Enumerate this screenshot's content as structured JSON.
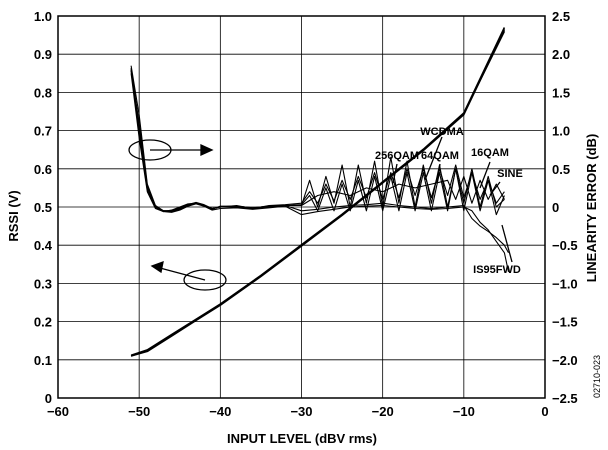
{
  "figure_id": "02710-023",
  "chart_data": {
    "type": "line",
    "xlabel": "INPUT LEVEL (dBV rms)",
    "ylabel_left": "RSSI (V)",
    "ylabel_right": "LINEARITY ERROR (dB)",
    "xlim": [
      -60,
      0
    ],
    "ylim_left": [
      0,
      1.0
    ],
    "ylim_right": [
      -2.5,
      2.5
    ],
    "grid": true,
    "x_ticks": [
      "−60",
      "−50",
      "−40",
      "−30",
      "−20",
      "−10",
      "0"
    ],
    "y_left_ticks": [
      "0",
      "0.1",
      "0.2",
      "0.3",
      "0.4",
      "0.5",
      "0.6",
      "0.7",
      "0.8",
      "0.9",
      "1.0"
    ],
    "y_right_ticks": [
      "−2.5",
      "−2.0",
      "−1.5",
      "−1.0",
      "−0.5",
      "0",
      "0.5",
      "1.0",
      "1.5",
      "2.0",
      "2.5"
    ],
    "annotations": [
      "WCDMA",
      "256QAM",
      "64QAM",
      "16QAM",
      "SINE",
      "IS95FWD"
    ],
    "series": [
      {
        "name": "SINE",
        "axis": "left",
        "x": [
          -51,
          -49,
          -46,
          -43,
          -40,
          -35,
          -30,
          -25,
          -20,
          -15,
          -10,
          -5
        ],
        "y": [
          0.11,
          0.125,
          0.165,
          0.205,
          0.245,
          0.32,
          0.4,
          0.48,
          0.565,
          0.65,
          0.745,
          0.96
        ]
      },
      {
        "name": "WCDMA",
        "axis": "left",
        "x": [
          -51,
          -49,
          -46,
          -43,
          -40,
          -35,
          -30,
          -25,
          -20,
          -15,
          -10,
          -5
        ],
        "y": [
          0.11,
          0.122,
          0.162,
          0.203,
          0.243,
          0.318,
          0.398,
          0.478,
          0.563,
          0.648,
          0.742,
          0.965
        ]
      },
      {
        "name": "IS95FWD",
        "axis": "left",
        "x": [
          -51,
          -49,
          -46,
          -43,
          -40,
          -35,
          -30,
          -25,
          -20,
          -15,
          -10,
          -5
        ],
        "y": [
          0.112,
          0.126,
          0.166,
          0.206,
          0.246,
          0.321,
          0.401,
          0.481,
          0.566,
          0.651,
          0.746,
          0.97
        ]
      },
      {
        "name": "SINE",
        "axis": "right",
        "x": [
          -51,
          -50,
          -49,
          -48,
          -47,
          -46,
          -45,
          -44,
          -43,
          -42,
          -41,
          -40,
          -38,
          -36,
          -34,
          -32,
          -30,
          -28,
          -26,
          -24,
          -22,
          -20,
          -18,
          -16,
          -14,
          -12,
          -10,
          -9,
          -8,
          -7,
          -6,
          -5,
          -4.5
        ],
        "y": [
          1.85,
          1.2,
          0.3,
          0.02,
          -0.05,
          -0.06,
          -0.03,
          0.02,
          0.05,
          0.02,
          -0.02,
          0,
          0,
          -0.02,
          0,
          0.02,
          -0.05,
          -0.03,
          0,
          0.02,
          0.03,
          0.05,
          0.02,
          0,
          -0.02,
          0,
          0.02,
          -0.15,
          -0.25,
          -0.32,
          -0.4,
          -0.5,
          -0.6
        ]
      },
      {
        "name": "WCDMA",
        "axis": "right",
        "x": [
          -51,
          -50,
          -49,
          -48,
          -47,
          -46,
          -45,
          -44,
          -43,
          -42,
          -41,
          -40,
          -38,
          -36,
          -34,
          -32,
          -30,
          -29,
          -28,
          -27,
          -26,
          -25,
          -24,
          -23,
          -22,
          -21,
          -20,
          -19,
          -18,
          -17,
          -16,
          -15,
          -14,
          -13,
          -12,
          -11,
          -10,
          -9,
          -8,
          -7,
          -6,
          -5
        ],
        "y": [
          1.8,
          1.0,
          0.25,
          0,
          -0.05,
          -0.05,
          -0.02,
          0.03,
          0.06,
          0.03,
          -0.02,
          0,
          0.02,
          -0.02,
          0.02,
          0.03,
          0.05,
          0.2,
          0.05,
          0.3,
          0.08,
          0.35,
          0.1,
          0.4,
          0.12,
          0.45,
          0.1,
          0.45,
          0.12,
          0.5,
          0.15,
          0.5,
          0.12,
          0.5,
          0.15,
          0.55,
          0.12,
          0.45,
          0.1,
          0.35,
          0.05,
          0.2
        ]
      },
      {
        "name": "256QAM",
        "axis": "right",
        "x": [
          -51,
          -50,
          -49,
          -48,
          -47,
          -46,
          -45,
          -44,
          -43,
          -42,
          -41,
          -40,
          -38,
          -36,
          -34,
          -32,
          -30,
          -29,
          -28,
          -27,
          -26,
          -25,
          -24,
          -23,
          -22,
          -21,
          -20,
          -19,
          -18,
          -17,
          -16,
          -15,
          -14,
          -13,
          -12,
          -11,
          -10,
          -9,
          -8,
          -7,
          -6,
          -5
        ],
        "y": [
          1.75,
          0.9,
          0.2,
          -0.02,
          -0.06,
          -0.04,
          0,
          0.04,
          0.05,
          0.02,
          -0.03,
          0.01,
          0.01,
          -0.01,
          0.01,
          0.02,
          0.02,
          0.35,
          0,
          0.4,
          0.05,
          0.55,
          0,
          0.55,
          0.05,
          0.6,
          0,
          0.65,
          0.05,
          0.6,
          0,
          0.55,
          0.05,
          0.55,
          0,
          0.5,
          0.05,
          0.5,
          0,
          0.4,
          0,
          0.1
        ]
      },
      {
        "name": "64QAM",
        "axis": "right",
        "x": [
          -51,
          -50,
          -49,
          -48,
          -47,
          -46,
          -45,
          -44,
          -43,
          -42,
          -41,
          -40,
          -38,
          -36,
          -34,
          -32,
          -30,
          -29,
          -28,
          -27,
          -26,
          -25,
          -24,
          -23,
          -22,
          -21,
          -20,
          -19,
          -18,
          -17,
          -16,
          -15,
          -14,
          -13,
          -12,
          -11,
          -10,
          -9,
          -8,
          -7,
          -6,
          -5
        ],
        "y": [
          1.8,
          0.95,
          0.22,
          -0.01,
          -0.05,
          -0.05,
          -0.01,
          0.03,
          0.05,
          0.02,
          -0.02,
          0,
          0,
          -0.02,
          0.01,
          0.02,
          0.03,
          0.15,
          -0.05,
          0.25,
          -0.05,
          0.3,
          -0.05,
          0.35,
          -0.05,
          0.4,
          -0.05,
          0.4,
          -0.05,
          0.45,
          -0.05,
          0.45,
          -0.05,
          0.45,
          -0.05,
          0.5,
          -0.05,
          0.45,
          -0.05,
          0.35,
          -0.1,
          0.15
        ]
      },
      {
        "name": "16QAM",
        "axis": "right",
        "x": [
          -51,
          -50,
          -49,
          -48,
          -47,
          -46,
          -45,
          -44,
          -43,
          -42,
          -41,
          -40,
          -38,
          -36,
          -34,
          -32,
          -30,
          -28,
          -26,
          -24,
          -22,
          -20,
          -18,
          -16,
          -14,
          -12,
          -11,
          -10,
          -9,
          -8,
          -7,
          -6,
          -5
        ],
        "y": [
          1.82,
          1.05,
          0.27,
          0,
          -0.05,
          -0.05,
          -0.02,
          0.02,
          0.05,
          0.02,
          -0.02,
          0,
          0.01,
          -0.01,
          0.01,
          0.02,
          0.02,
          0.15,
          0.2,
          0.15,
          0.25,
          0.2,
          0.3,
          0.25,
          0.3,
          0.35,
          0.1,
          0.4,
          0.05,
          0.35,
          0.1,
          0.3,
          0.1
        ]
      },
      {
        "name": "IS95FWD",
        "axis": "right",
        "x": [
          -51,
          -50,
          -49,
          -48,
          -47,
          -46,
          -45,
          -44,
          -43,
          -42,
          -41,
          -40,
          -38,
          -36,
          -34,
          -32,
          -30,
          -28,
          -26,
          -24,
          -22,
          -20,
          -18,
          -16,
          -14,
          -12,
          -10,
          -9,
          -8,
          -7,
          -6,
          -5,
          -4.5
        ],
        "y": [
          1.78,
          1.1,
          0.28,
          0,
          -0.06,
          -0.07,
          -0.04,
          0.01,
          0.04,
          0.01,
          -0.04,
          -0.02,
          -0.01,
          -0.03,
          -0.01,
          0.01,
          -0.1,
          -0.06,
          -0.03,
          0,
          0.01,
          0.02,
          0,
          -0.02,
          -0.03,
          -0.02,
          0,
          -0.05,
          -0.2,
          -0.3,
          -0.45,
          -0.6,
          -0.85
        ]
      }
    ]
  }
}
